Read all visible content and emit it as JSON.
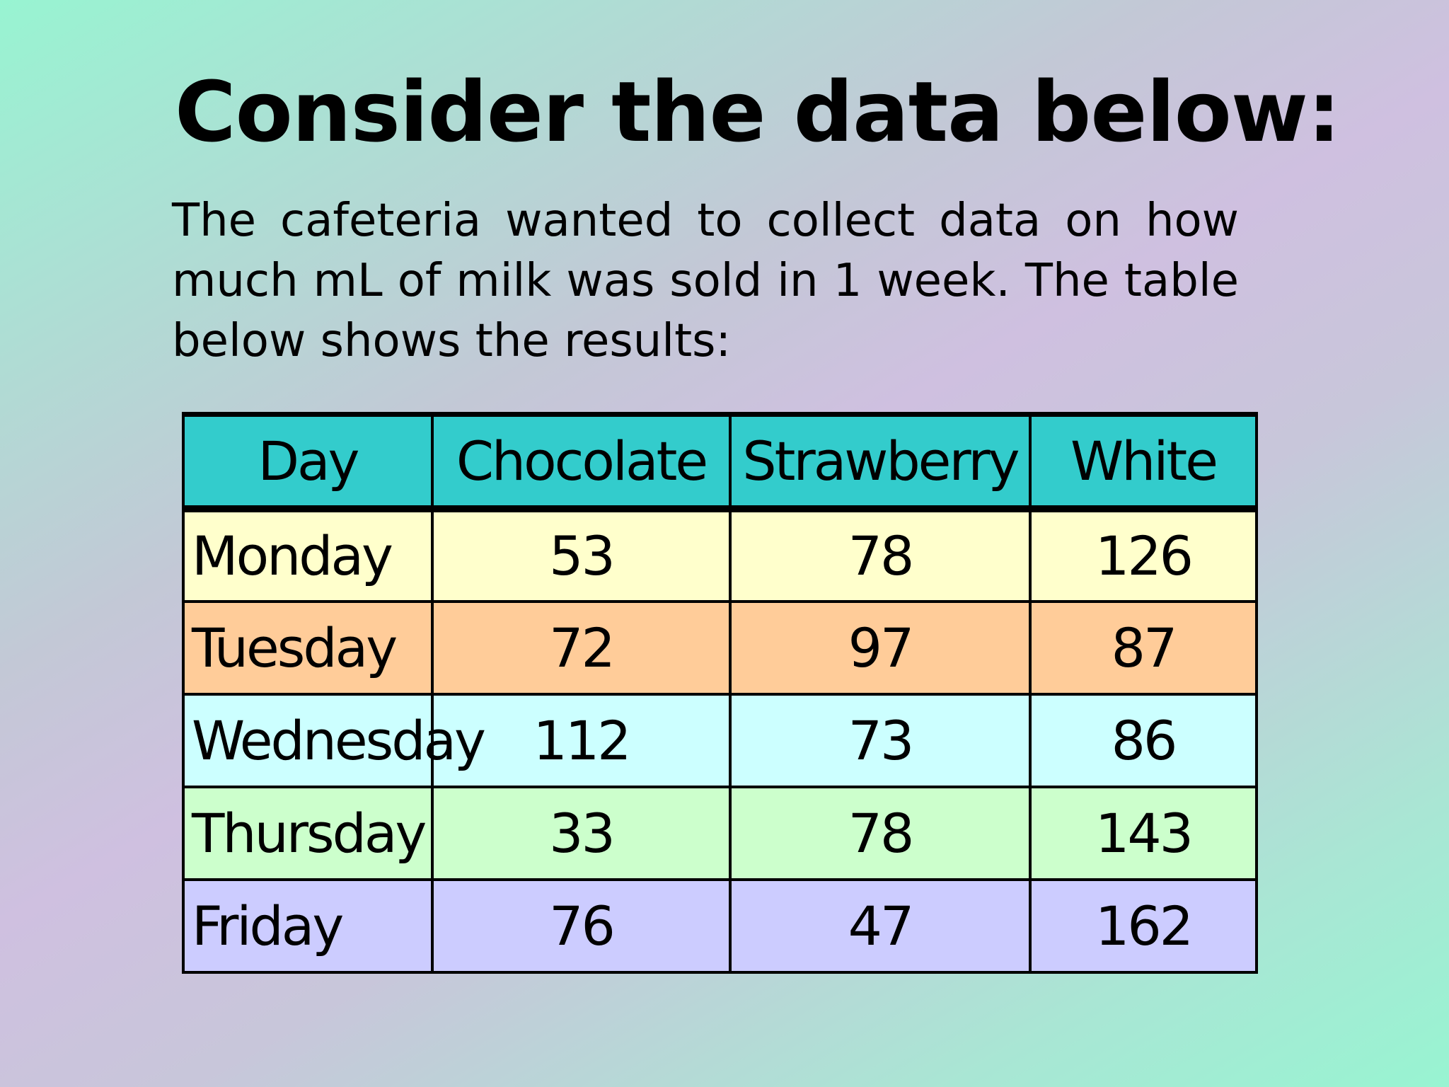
{
  "title": "Consider the data below:",
  "intro": "The cafeteria wanted to collect data on how much mL of milk was sold in 1 week.  The table below shows the results:",
  "table": {
    "headers": [
      "Day",
      "Chocolate",
      "Strawberry",
      "White"
    ],
    "rows": [
      {
        "day": "Monday",
        "chocolate": "53",
        "strawberry": "78",
        "white": "126"
      },
      {
        "day": "Tuesday",
        "chocolate": "72",
        "strawberry": "97",
        "white": "87"
      },
      {
        "day": "Wednesday",
        "chocolate": "112",
        "strawberry": "73",
        "white": "86"
      },
      {
        "day": "Thursday",
        "chocolate": "33",
        "strawberry": "78",
        "white": "143"
      },
      {
        "day": "Friday",
        "chocolate": "76",
        "strawberry": "47",
        "white": "162"
      }
    ]
  },
  "colors": {
    "header": "#33cccc",
    "monday": "#ffffcc",
    "tuesday": "#ffcc99",
    "wednesday": "#ccffff",
    "thursday": "#ccffcc",
    "friday": "#ccccff"
  }
}
